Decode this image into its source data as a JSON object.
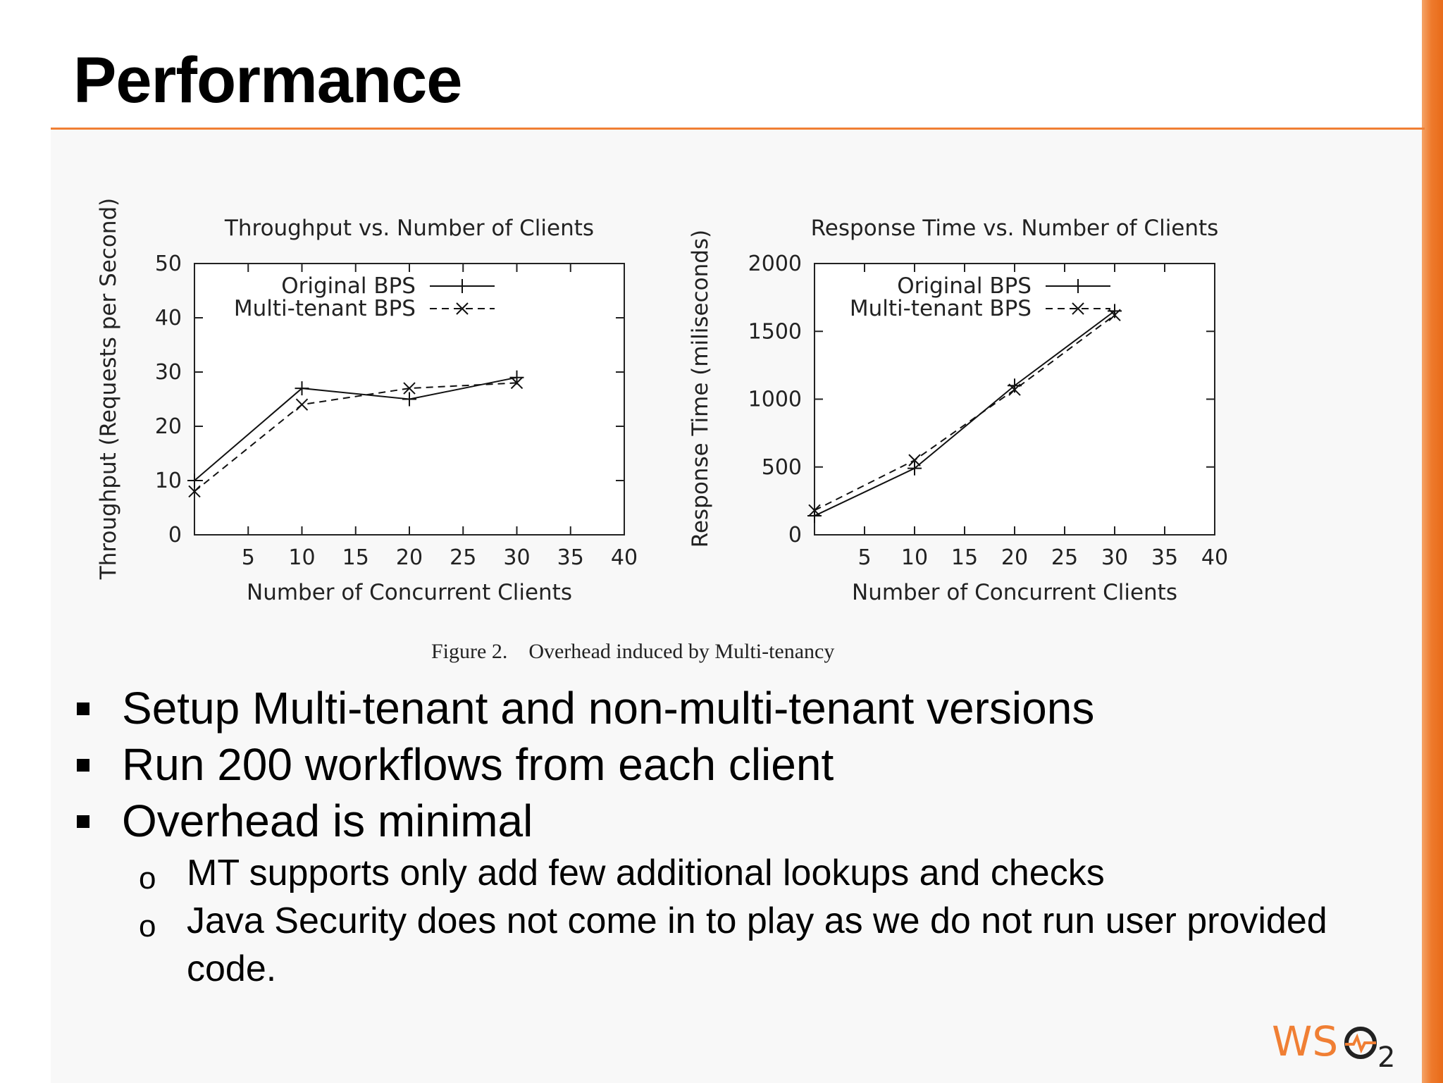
{
  "slide": {
    "title": "Performance",
    "caption_label": "Figure 2.",
    "caption_text": "Overhead induced by Multi-tenancy",
    "bullets": [
      "Setup Multi-tenant and non-multi-tenant versions",
      "Run 200 workflows from each client",
      "Overhead is minimal"
    ],
    "sub_bullets": [
      "MT supports only add few additional lookups and checks",
      "Java Security does not come in to play as we do not run user provided code."
    ],
    "logo_text": "WSO2"
  },
  "colors": {
    "accent": "#f07f34",
    "line": "#000000"
  },
  "icons": {
    "bullet_marker": "square",
    "sub_bullet_marker": "o",
    "logo": "wso2-logo"
  },
  "chart_data": [
    {
      "type": "line",
      "title": "Throughput vs. Number of Clients",
      "xlabel": "Number of Concurrent Clients",
      "ylabel": "Throughput (Requests per Second)",
      "xlim": [
        0,
        40
      ],
      "ylim": [
        0,
        50
      ],
      "xticks": [
        5,
        10,
        15,
        20,
        25,
        30,
        35,
        40
      ],
      "yticks": [
        0,
        10,
        20,
        30,
        40,
        50
      ],
      "legend_position": "top-right",
      "grid": false,
      "series": [
        {
          "name": "Original BPS",
          "marker": "plus",
          "dash": "solid",
          "x": [
            0,
            10,
            20,
            30
          ],
          "y": [
            10,
            27,
            25,
            29
          ]
        },
        {
          "name": "Multi-tenant BPS",
          "marker": "cross",
          "dash": "dashed",
          "x": [
            0,
            10,
            20,
            30
          ],
          "y": [
            8,
            24,
            27,
            28
          ]
        }
      ]
    },
    {
      "type": "line",
      "title": "Response Time vs. Number of Clients",
      "xlabel": "Number of Concurrent Clients",
      "ylabel": "Response Time (miliseconds)",
      "xlim": [
        0,
        40
      ],
      "ylim": [
        0,
        2000
      ],
      "xticks": [
        5,
        10,
        15,
        20,
        25,
        30,
        35,
        40
      ],
      "yticks": [
        0,
        500,
        1000,
        1500,
        2000
      ],
      "legend_position": "top-right",
      "grid": false,
      "series": [
        {
          "name": "Original BPS",
          "marker": "plus",
          "dash": "solid",
          "x": [
            0,
            10,
            20,
            30
          ],
          "y": [
            140,
            490,
            1100,
            1650
          ]
        },
        {
          "name": "Multi-tenant BPS",
          "marker": "cross",
          "dash": "dashed",
          "x": [
            0,
            10,
            20,
            30
          ],
          "y": [
            180,
            550,
            1070,
            1620
          ]
        }
      ]
    }
  ]
}
